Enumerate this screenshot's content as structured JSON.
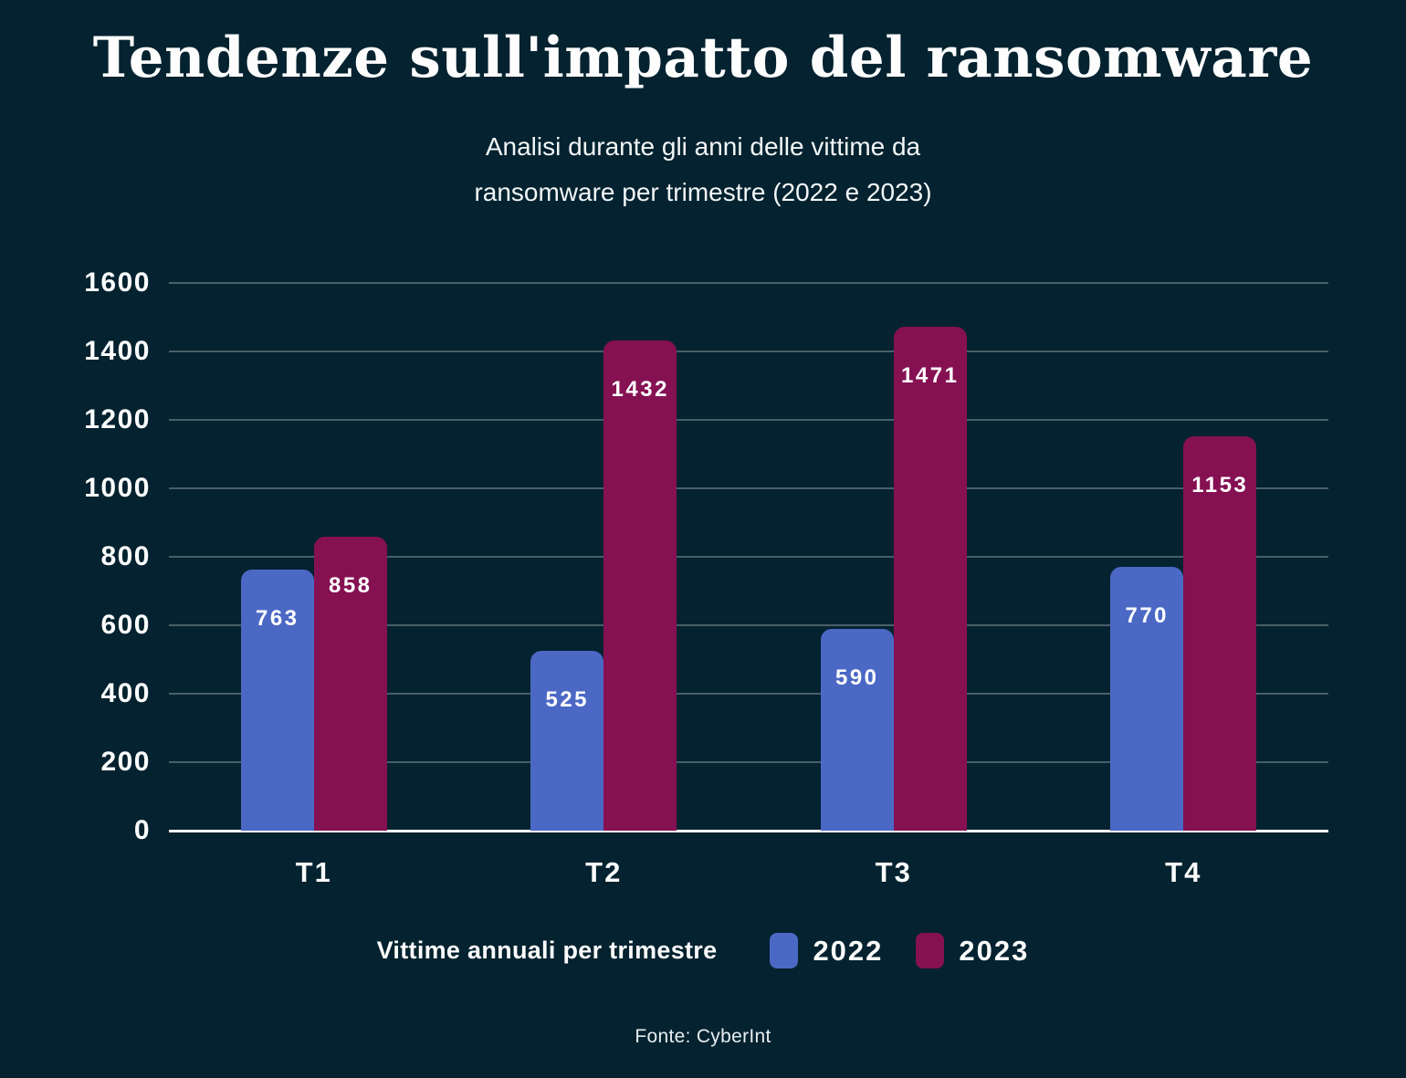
{
  "title": "Tendenze sull'impatto del ransomware",
  "subtitle": {
    "line1": "Analisi durante gli anni delle vittime da",
    "line2": "ransomware per trimestre (2022 e 2023)"
  },
  "legend": {
    "title": "Vittime annuali per trimestre",
    "items": [
      {
        "name": "2022",
        "color": "#4b68c5"
      },
      {
        "name": "2023",
        "color": "#851153"
      }
    ]
  },
  "source": "Fonte: CyberInt",
  "colors": {
    "background": "#04222f",
    "text": "#ffffff",
    "gridline": "rgba(255,255,255,0.28)",
    "axis_line": "#ffffff",
    "series_2022": "#4b68c5",
    "series_2023": "#851153"
  },
  "chart_data": {
    "type": "bar",
    "title": "Tendenze sull'impatto del ransomware",
    "subtitle": "Analisi durante gli anni delle vittime da ransomware per trimestre (2022 e 2023)",
    "categories": [
      "T1",
      "T2",
      "T3",
      "T4"
    ],
    "series": [
      {
        "name": "2022",
        "color": "#4b68c5",
        "values": [
          763,
          525,
          590,
          770
        ]
      },
      {
        "name": "2023",
        "color": "#851153",
        "values": [
          858,
          1432,
          1471,
          1153
        ]
      }
    ],
    "xlabel": "",
    "ylabel": "",
    "ylim": [
      0,
      1600
    ],
    "yticks": [
      1600,
      1400,
      1200,
      1000,
      800,
      600,
      400,
      200,
      0
    ],
    "grid": true,
    "legend_title": "Vittime annuali per trimestre",
    "legend_position": "bottom",
    "source": "Fonte: CyberInt"
  }
}
